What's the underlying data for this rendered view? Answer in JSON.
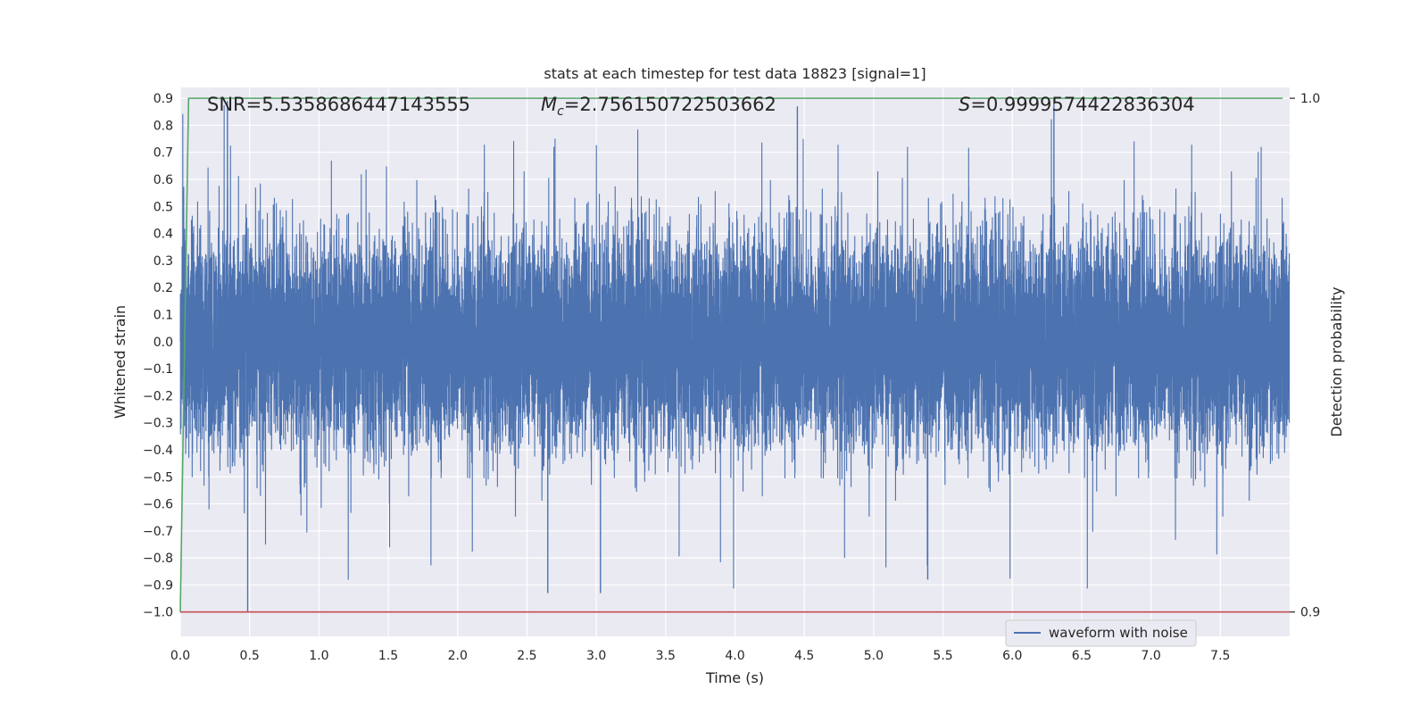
{
  "chart_data": {
    "type": "line",
    "title": "stats at each timestep for test data 18823 [signal=1]",
    "xlabel": "Time (s)",
    "ylabel": "Whitened strain",
    "y2label": "Detection probability",
    "xlim": [
      0.0,
      8.0
    ],
    "ylim": [
      -1.09,
      0.94
    ],
    "y2lim": [
      0.9,
      1.0
    ],
    "grid": true,
    "legend_position": "bottom-right",
    "x_ticks": [
      "0.0",
      "0.5",
      "1.0",
      "1.5",
      "2.0",
      "2.5",
      "3.0",
      "3.5",
      "4.0",
      "4.5",
      "5.0",
      "5.5",
      "6.0",
      "6.5",
      "7.0",
      "7.5"
    ],
    "y_ticks": [
      "0.9",
      "0.8",
      "0.7",
      "0.6",
      "0.5",
      "0.4",
      "0.3",
      "0.2",
      "0.1",
      "0.0",
      "−0.1",
      "−0.2",
      "−0.3",
      "−0.4",
      "−0.5",
      "−0.6",
      "−0.7",
      "−0.8",
      "−0.9",
      "−1.0"
    ],
    "y2_ticks": [
      "1.0",
      "0.9"
    ],
    "annotations": {
      "snr": "SNR=5.5358686447143555",
      "mc_symbol": "M",
      "mc_sub": "c",
      "mc_value": "=2.756150722503662",
      "s_symbol": "S",
      "s_value": "=0.9999574422836304"
    },
    "series": [
      {
        "name": "waveform with noise",
        "axis": "left",
        "color": "#4c72b0",
        "description": "noisy whitened strain, approx. 0.0-8.0 s, amplitude mostly within ±0.5 with peaks near ±0.9",
        "sample_rate_hz": 2048,
        "amplitude_std": 0.19,
        "peak_min": -1.0,
        "peak_max": 0.9
      },
      {
        "axis": "right",
        "color": "#55a868",
        "x": [
          0.0,
          0.06,
          7.95
        ],
        "y": [
          0.9,
          1.0,
          1.0
        ]
      },
      {
        "axis": "left",
        "color": "#c44e52",
        "type": "hline",
        "y": -1.0
      }
    ]
  }
}
